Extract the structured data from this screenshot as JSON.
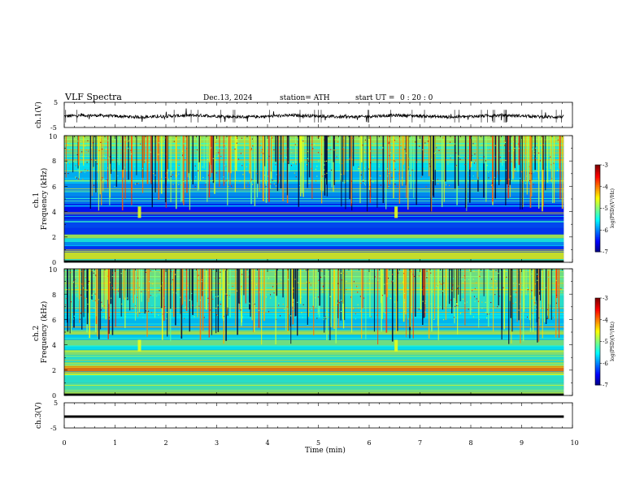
{
  "header": {
    "title": "VLF  Spectra",
    "date": "Dec.13, 2024",
    "station": "station= ATH",
    "start_ut_label": "start  UT  =",
    "start_ut_value": "0  : 20 : 0"
  },
  "chart_data": [
    {
      "type": "line",
      "name": "ch1-waveform",
      "ylabel": "ch.1(V)",
      "ylim": [
        -5,
        5
      ],
      "yticks": [
        "5",
        "-5"
      ],
      "x_range_min": [
        0,
        9.83
      ],
      "baseline": -0.5,
      "noise_amp": 0.6,
      "color": "#000000"
    },
    {
      "type": "heatmap",
      "name": "ch1-spectrogram",
      "ylabel": "ch.1\nFrequency (kHz)",
      "ylim": [
        0,
        10
      ],
      "yticks": [
        "0",
        "2",
        "4",
        "6",
        "8",
        "10"
      ],
      "x_range_min": [
        0,
        9.83
      ],
      "colorbar": {
        "label": "log(PSD)(V²/Hz)",
        "range": [
          -7,
          -3
        ],
        "ticks": [
          "-3",
          "-4",
          "-5",
          "-6",
          "-7"
        ]
      },
      "spheric_events_min": [
        1.48,
        6.53
      ]
    },
    {
      "type": "heatmap",
      "name": "ch2-spectrogram",
      "ylabel": "ch.2\nFrequency (kHz)",
      "ylim": [
        0,
        10
      ],
      "yticks": [
        "0",
        "2",
        "4",
        "6",
        "8",
        "10"
      ],
      "x_range_min": [
        0,
        9.83
      ],
      "colorbar": {
        "label": "log(PSD)(V²/Hz)",
        "range": [
          -7,
          -3
        ],
        "ticks": [
          "-3",
          "-4",
          "-5",
          "-6",
          "-7"
        ]
      },
      "spheric_events_min": [
        1.48,
        6.53
      ]
    },
    {
      "type": "line",
      "name": "ch3-waveform",
      "ylabel": "ch.3(V)",
      "ylim": [
        -5,
        5
      ],
      "yticks": [
        "5",
        "-5"
      ],
      "x_range_min": [
        0,
        9.83
      ],
      "baseline": -0.5,
      "color": "#000000"
    }
  ],
  "x_axis": {
    "label": "Time  (min)",
    "xlim": [
      0,
      10
    ],
    "ticks": [
      "0",
      "1",
      "2",
      "3",
      "4",
      "5",
      "6",
      "7",
      "8",
      "9",
      "10"
    ]
  }
}
